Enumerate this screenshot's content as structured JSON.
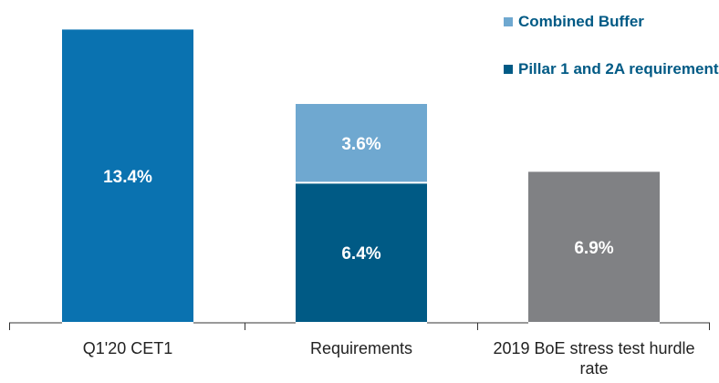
{
  "chart_data": {
    "type": "bar",
    "stacked": true,
    "categories": [
      "Q1'20 CET1",
      "Requirements",
      "2019 BoE stress test hurdle rate"
    ],
    "series": [
      {
        "color": "#0a72b0",
        "values": [
          13.4,
          null,
          null
        ],
        "value_labels": [
          "13.4%",
          null,
          null
        ]
      },
      {
        "name": "Pillar 1 and 2A requirement",
        "color": "#005a85",
        "values": [
          null,
          6.4,
          null
        ],
        "value_labels": [
          null,
          "6.4%",
          null
        ]
      },
      {
        "name": "Combined Buffer",
        "color": "#6fa8d0",
        "values": [
          null,
          3.6,
          null
        ],
        "value_labels": [
          null,
          "3.6%",
          null
        ]
      },
      {
        "color": "#808184",
        "values": [
          null,
          null,
          6.9
        ],
        "value_labels": [
          null,
          null,
          "6.9%"
        ]
      }
    ]
  }
}
